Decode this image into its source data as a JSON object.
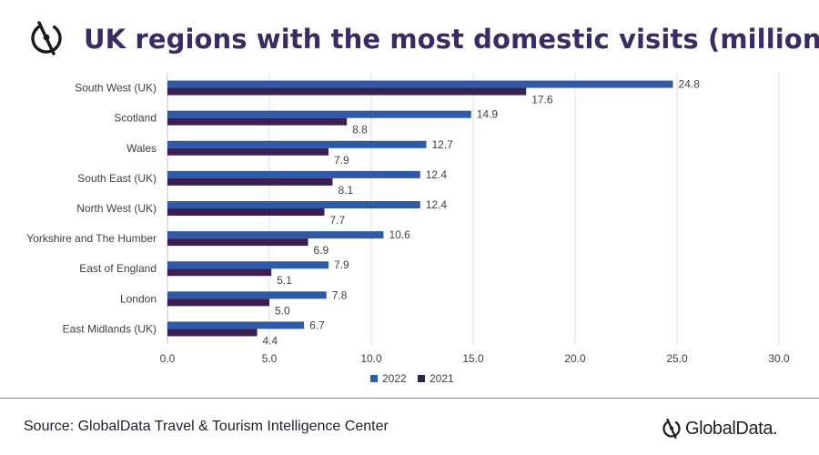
{
  "header": {
    "title": "UK regions with the most domestic visits (millions)",
    "icon": "globaldata-logo-icon"
  },
  "footer": {
    "source": "Source: GlobalData Travel & Tourism Intelligence Center",
    "brand": "GlobalData."
  },
  "colors": {
    "series_2022": "#2e5aa8",
    "series_2021": "#3a1f52",
    "title": "#3a2b63",
    "gridline": "#dcd6ee"
  },
  "chart_data": {
    "type": "bar",
    "orientation": "horizontal",
    "categories": [
      "South West (UK)",
      "Scotland",
      "Wales",
      "South East (UK)",
      "North West (UK)",
      "Yorkshire and The Humber",
      "East of England",
      "London",
      "East Midlands (UK)"
    ],
    "series": [
      {
        "name": "2022",
        "values": [
          24.8,
          14.9,
          12.7,
          12.4,
          12.4,
          10.6,
          7.9,
          7.8,
          6.7
        ],
        "labels": [
          "24.8",
          "14.9",
          "12.7",
          "12.4",
          "12.4",
          "10.6",
          "7.9",
          "7.8",
          "6.7"
        ]
      },
      {
        "name": "2021",
        "values": [
          17.6,
          8.8,
          7.9,
          8.1,
          7.7,
          6.9,
          5.1,
          5.0,
          4.4
        ],
        "labels": [
          "17.6",
          "8.8",
          "7.9",
          "8.1",
          "7.7",
          "6.9",
          "5.1",
          "5.0",
          "4.4"
        ]
      }
    ],
    "xlim": [
      0,
      30
    ],
    "xticks": [
      "0.0",
      "5.0",
      "10.0",
      "15.0",
      "20.0",
      "25.0",
      "30.0"
    ],
    "grid": true,
    "legend_position": "bottom"
  }
}
